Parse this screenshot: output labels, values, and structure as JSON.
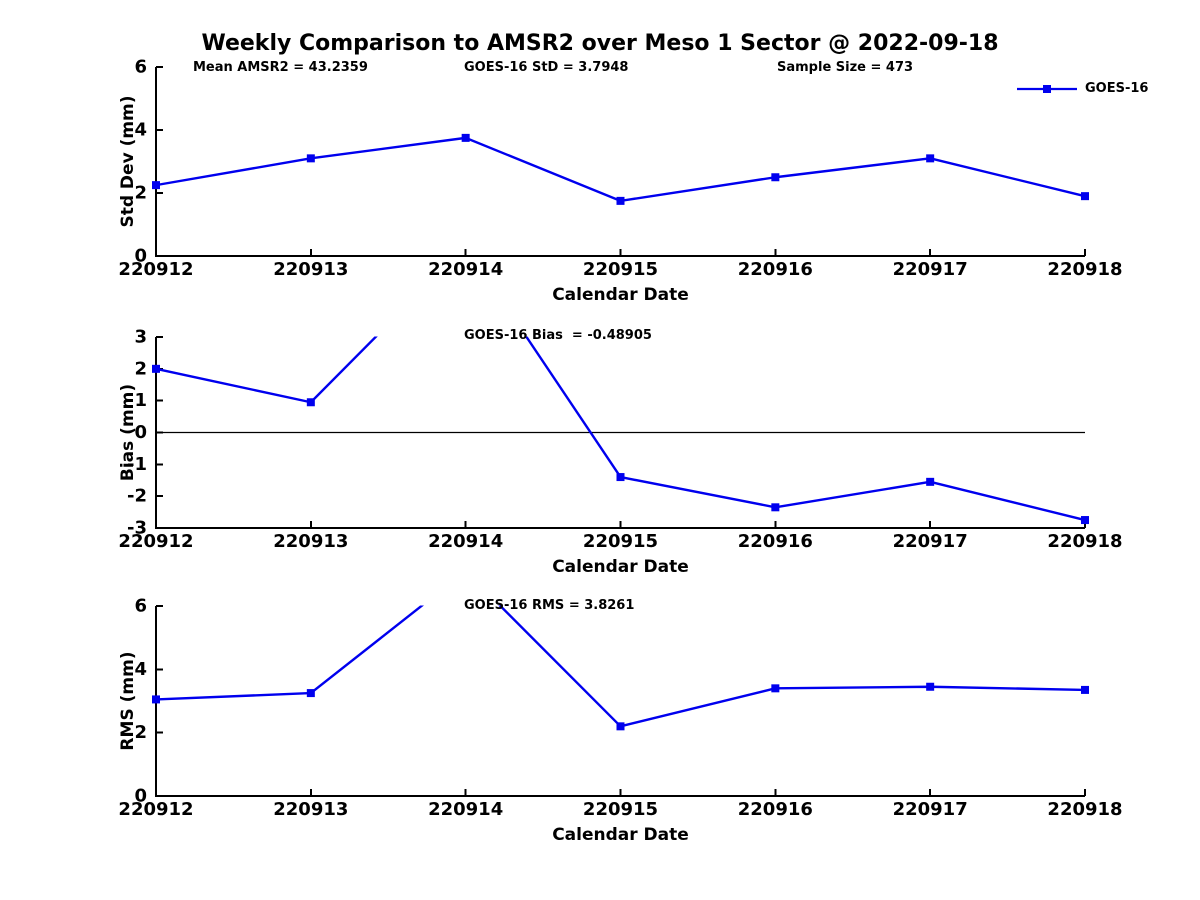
{
  "title": "Weekly Comparison to AMSR2 over Meso 1 Sector @ 2022-09-18",
  "chart_data": [
    {
      "id": "std-dev",
      "type": "line",
      "title": "",
      "xlabel": "Calendar Date",
      "ylabel": "Std Dev (mm)",
      "categories": [
        "220912",
        "220913",
        "220914",
        "220915",
        "220916",
        "220917",
        "220918"
      ],
      "series": [
        {
          "name": "GOES-16",
          "color": "#0000EE",
          "marker": "square",
          "values": [
            2.25,
            3.1,
            3.75,
            1.75,
            2.5,
            3.1,
            1.9
          ]
        }
      ],
      "ylim": [
        0,
        6
      ],
      "yticks": [
        0,
        2,
        4,
        6
      ],
      "grid": false,
      "legend": "top-right",
      "annotations": [
        {
          "text": "Mean AMSR2 = 43.2359"
        },
        {
          "text": "GOES-16 StD = 3.7948"
        },
        {
          "text": "Sample Size = 473"
        }
      ]
    },
    {
      "id": "bias",
      "type": "line",
      "title": "",
      "xlabel": "Calendar Date",
      "ylabel": "Bias (mm)",
      "categories": [
        "220912",
        "220913",
        "220914",
        "220915",
        "220916",
        "220917",
        "220918"
      ],
      "series": [
        {
          "name": "GOES-16",
          "color": "#0000EE",
          "marker": "square",
          "values": [
            2.0,
            0.95,
            5.85,
            -1.4,
            -2.35,
            -1.55,
            -2.75
          ]
        }
      ],
      "ylim": [
        -3,
        3
      ],
      "yticks": [
        3,
        2,
        1,
        0,
        -1,
        -2,
        -3
      ],
      "zero_line": true,
      "grid": false,
      "legend": "none",
      "clipped_note": "value at 220914 exceeds ylim and is clipped at top",
      "annotations": [
        {
          "text": "GOES-16 Bias  = -0.48905"
        }
      ]
    },
    {
      "id": "rms",
      "type": "line",
      "title": "",
      "xlabel": "Calendar Date",
      "ylabel": "RMS (mm)",
      "categories": [
        "220912",
        "220913",
        "220914",
        "220915",
        "220916",
        "220917",
        "220918"
      ],
      "series": [
        {
          "name": "GOES-16",
          "color": "#0000EE",
          "marker": "square",
          "values": [
            3.05,
            3.25,
            7.1,
            2.2,
            3.4,
            3.45,
            3.35
          ]
        }
      ],
      "ylim": [
        0,
        6
      ],
      "yticks": [
        0,
        2,
        4,
        6
      ],
      "grid": false,
      "legend": "none",
      "clipped_note": "value at 220914 exceeds ylim and is clipped at top",
      "annotations": [
        {
          "text": "GOES-16 RMS = 3.8261"
        }
      ]
    }
  ]
}
